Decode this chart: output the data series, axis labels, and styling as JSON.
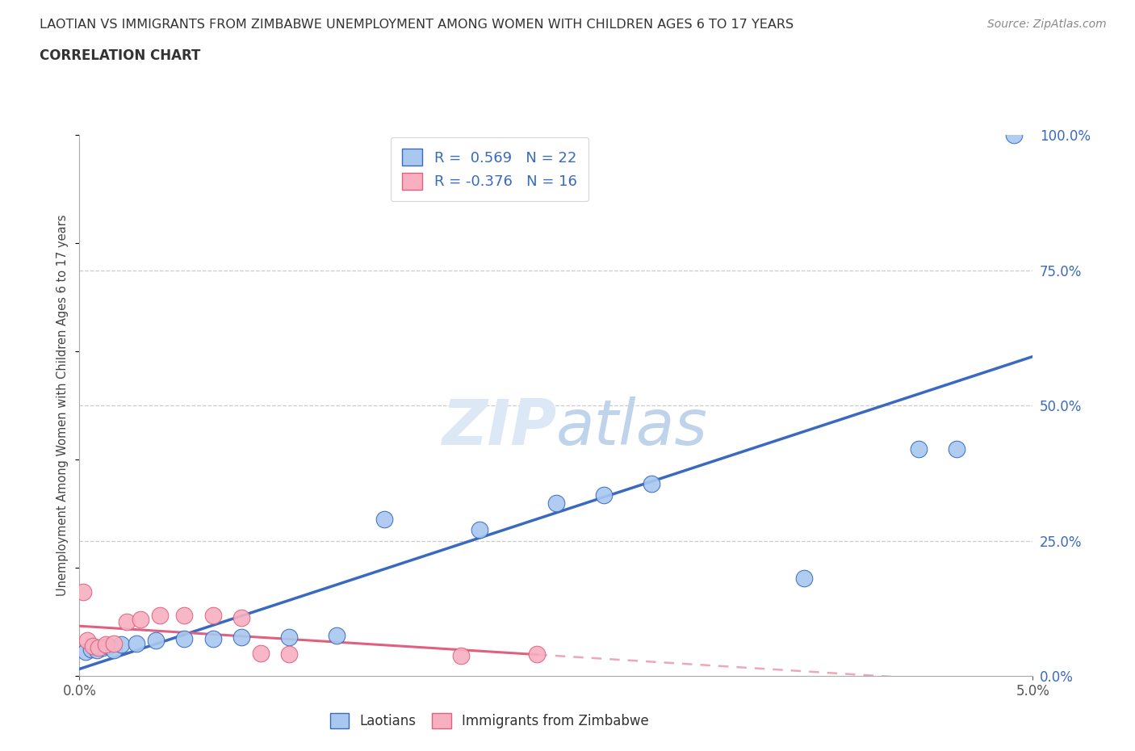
{
  "title_line1": "LAOTIAN VS IMMIGRANTS FROM ZIMBABWE UNEMPLOYMENT AMONG WOMEN WITH CHILDREN AGES 6 TO 17 YEARS",
  "title_line2": "CORRELATION CHART",
  "source_text": "Source: ZipAtlas.com",
  "ylabel": "Unemployment Among Women with Children Ages 6 to 17 years",
  "laotian_color": "#a8c8f0",
  "zimbabwe_color": "#f8b0c0",
  "trend_laotian_color": "#3a6abf",
  "trend_zimbabwe_color": "#e06080",
  "watermark_zip": "ZIP",
  "watermark_atlas": "atlas",
  "laotian_points": [
    [
      0.0003,
      0.045
    ],
    [
      0.0006,
      0.05
    ],
    [
      0.0009,
      0.048
    ],
    [
      0.0012,
      0.052
    ],
    [
      0.0015,
      0.055
    ],
    [
      0.0018,
      0.048
    ],
    [
      0.0022,
      0.058
    ],
    [
      0.003,
      0.06
    ],
    [
      0.004,
      0.065
    ],
    [
      0.0055,
      0.068
    ],
    [
      0.007,
      0.068
    ],
    [
      0.0085,
      0.072
    ],
    [
      0.011,
      0.072
    ],
    [
      0.0135,
      0.075
    ],
    [
      0.016,
      0.29
    ],
    [
      0.021,
      0.27
    ],
    [
      0.025,
      0.32
    ],
    [
      0.0275,
      0.335
    ],
    [
      0.03,
      0.355
    ],
    [
      0.038,
      0.18
    ],
    [
      0.044,
      0.42
    ],
    [
      0.046,
      0.42
    ],
    [
      0.049,
      1.0
    ]
  ],
  "zimbabwe_points": [
    [
      0.0002,
      0.155
    ],
    [
      0.0004,
      0.065
    ],
    [
      0.0007,
      0.055
    ],
    [
      0.001,
      0.052
    ],
    [
      0.0014,
      0.058
    ],
    [
      0.0018,
      0.06
    ],
    [
      0.0025,
      0.1
    ],
    [
      0.0032,
      0.105
    ],
    [
      0.0042,
      0.112
    ],
    [
      0.0055,
      0.112
    ],
    [
      0.007,
      0.112
    ],
    [
      0.0085,
      0.108
    ],
    [
      0.0095,
      0.042
    ],
    [
      0.011,
      0.04
    ],
    [
      0.02,
      0.038
    ],
    [
      0.024,
      0.04
    ]
  ],
  "xlim": [
    0,
    0.05
  ],
  "ylim": [
    0,
    1.0
  ],
  "yticks": [
    0.0,
    0.25,
    0.5,
    0.75,
    1.0
  ],
  "ytick_labels": [
    "0.0%",
    "25.0%",
    "50.0%",
    "75.0%",
    "100.0%"
  ],
  "xtick_labels": [
    "0.0%",
    "5.0%"
  ]
}
